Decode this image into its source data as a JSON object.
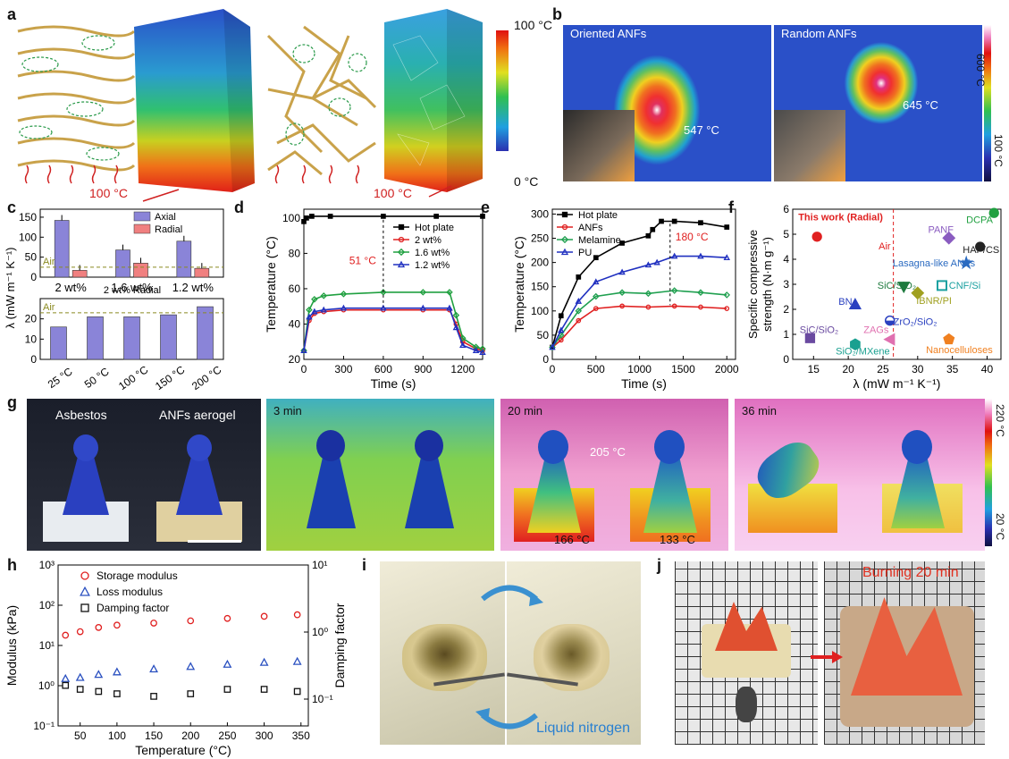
{
  "panels": {
    "a": {
      "label": "a",
      "heat_label_left": "100 °C",
      "heat_label_right": "100 °C",
      "colorbar_top": "100 °C",
      "colorbar_bottom": "0 °C",
      "colors": {
        "hot": "#e0201a",
        "cold": "#2a50c8",
        "fiber": "#c9a24a"
      }
    },
    "b": {
      "label": "b",
      "left_title": "Oriented ANFs",
      "right_title": "Random ANFs",
      "left_temp": "547 °C",
      "right_temp": "645 °C",
      "colorbar_top": "600 °C",
      "colorbar_bottom": "100 °C"
    },
    "g": {
      "label": "g",
      "photo_left_label": "Asbestos",
      "photo_right_label": "ANFs aerogel",
      "t1": "3 min",
      "t2": "20 min",
      "t3": "36 min",
      "bg_temp": "205 °C",
      "left_temp": "166 °C",
      "right_temp": "133 °C",
      "colorbar_top": "220 °C",
      "colorbar_bottom": "20 °C"
    },
    "i": {
      "label": "i",
      "caption": "Liquid nitrogen"
    },
    "j": {
      "label": "j",
      "caption": "Burning 20 min"
    }
  },
  "chart_data": [
    {
      "id": "c-top",
      "panel": "c",
      "type": "bar",
      "categories": [
        "2 wt%",
        "1.6 wt%",
        "1.2 wt%"
      ],
      "series": [
        {
          "name": "Axial",
          "values": [
            142,
            68,
            90
          ],
          "color": "#8a84d8"
        },
        {
          "name": "Radial",
          "values": [
            17,
            35,
            22
          ],
          "color": "#f08080"
        }
      ],
      "air_line": 25,
      "air_label": "Air",
      "ylim": [
        0,
        170
      ],
      "yticks": [
        0,
        50,
        100,
        150
      ]
    },
    {
      "id": "c-bottom",
      "panel": "c",
      "type": "bar",
      "title": "2 wt% Radial",
      "categories": [
        "25 °C",
        "50 °C",
        "100 °C",
        "150 °C",
        "200 °C"
      ],
      "values": [
        16,
        21,
        21,
        22,
        26
      ],
      "air_line": 23,
      "air_label": "Air",
      "ylim": [
        0,
        30
      ],
      "yticks": [
        0,
        10,
        20
      ],
      "ylabel": "λ (mW m⁻¹ K⁻¹)"
    },
    {
      "id": "d",
      "panel": "d",
      "type": "line",
      "xlabel": "Time (s)",
      "ylabel": "Temperature (°C)",
      "xlim": [
        0,
        1350
      ],
      "ylim": [
        20,
        105
      ],
      "xticks": [
        0,
        300,
        600,
        900,
        1200
      ],
      "yticks": [
        20,
        40,
        60,
        80,
        100
      ],
      "annotation": "51 °C",
      "series": [
        {
          "name": "Hot plate",
          "color": "#000000",
          "marker": "square",
          "x": [
            0,
            20,
            60,
            200,
            600,
            1000,
            1350
          ],
          "y": [
            98,
            100,
            101,
            101,
            101,
            101,
            101
          ]
        },
        {
          "name": "2 wt%",
          "color": "#e02020",
          "marker": "circle",
          "x": [
            0,
            40,
            80,
            150,
            300,
            600,
            900,
            1100,
            1150,
            1200,
            1300,
            1350
          ],
          "y": [
            25,
            42,
            46,
            47,
            48,
            48,
            48,
            48,
            40,
            30,
            26,
            25
          ]
        },
        {
          "name": "1.6 wt%",
          "color": "#20a040",
          "marker": "diamond",
          "x": [
            0,
            40,
            80,
            150,
            300,
            600,
            900,
            1100,
            1150,
            1200,
            1300,
            1350
          ],
          "y": [
            25,
            48,
            54,
            56,
            57,
            58,
            58,
            58,
            45,
            32,
            27,
            26
          ]
        },
        {
          "name": "1.2 wt%",
          "color": "#2030c0",
          "marker": "triangle",
          "x": [
            0,
            40,
            80,
            150,
            300,
            600,
            900,
            1100,
            1150,
            1200,
            1300,
            1350
          ],
          "y": [
            25,
            44,
            47,
            48,
            49,
            49,
            49,
            49,
            38,
            28,
            25,
            24
          ]
        }
      ]
    },
    {
      "id": "e",
      "panel": "e",
      "type": "line",
      "xlabel": "Time (s)",
      "ylabel": "Temperature (°C)",
      "xlim": [
        0,
        2100
      ],
      "ylim": [
        0,
        310
      ],
      "xticks": [
        0,
        500,
        1000,
        1500,
        2000
      ],
      "yticks": [
        0,
        50,
        100,
        150,
        200,
        250,
        300
      ],
      "annotation": "180 °C",
      "series": [
        {
          "name": "Hot plate",
          "color": "#000000",
          "marker": "square",
          "x": [
            0,
            100,
            300,
            500,
            800,
            1100,
            1150,
            1250,
            1400,
            1700,
            2000
          ],
          "y": [
            25,
            90,
            170,
            210,
            240,
            255,
            268,
            285,
            285,
            282,
            273
          ]
        },
        {
          "name": "ANFs",
          "color": "#e02020",
          "marker": "circle",
          "x": [
            0,
            100,
            300,
            500,
            800,
            1100,
            1400,
            1700,
            2000
          ],
          "y": [
            25,
            40,
            80,
            105,
            110,
            108,
            110,
            108,
            105
          ]
        },
        {
          "name": "Melamine",
          "color": "#20a050",
          "marker": "diamond",
          "x": [
            0,
            100,
            300,
            500,
            800,
            1100,
            1400,
            1700,
            2000
          ],
          "y": [
            25,
            50,
            100,
            130,
            138,
            136,
            142,
            138,
            133
          ]
        },
        {
          "name": "PU",
          "color": "#2030c0",
          "marker": "triangle",
          "x": [
            0,
            100,
            300,
            500,
            800,
            1100,
            1200,
            1400,
            1700,
            2000
          ],
          "y": [
            25,
            60,
            120,
            160,
            180,
            195,
            200,
            213,
            213,
            210
          ]
        }
      ]
    },
    {
      "id": "f",
      "panel": "f",
      "type": "scatter",
      "xlabel": "λ (mW m⁻¹ K⁻¹)",
      "ylabel": "Specific compressive strength (N·m g⁻¹)",
      "xlim": [
        12,
        42
      ],
      "ylim": [
        0,
        6
      ],
      "xticks": [
        15,
        20,
        25,
        30,
        35,
        40
      ],
      "yticks": [
        0,
        1,
        2,
        3,
        4,
        5,
        6
      ],
      "air_x": 26.5,
      "air_label": "Air",
      "points": [
        {
          "name": "This work (Radial)",
          "x": 15.5,
          "y": 4.9,
          "color": "#e02020",
          "shape": "circle",
          "lx": 12.8,
          "ly": 5.55,
          "bold": true
        },
        {
          "name": "DCPA",
          "x": 41,
          "y": 5.85,
          "color": "#20a040",
          "shape": "circle",
          "lx": 37,
          "ly": 5.45
        },
        {
          "name": "PANF",
          "x": 34.5,
          "y": 4.85,
          "color": "#8a5cc0",
          "shape": "diamond",
          "lx": 31.5,
          "ly": 5.05
        },
        {
          "name": "HAP/CS",
          "x": 39,
          "y": 4.5,
          "color": "#222222",
          "shape": "circle",
          "lx": 36.5,
          "ly": 4.25
        },
        {
          "name": "Lasagna-like ANFs",
          "x": 37,
          "y": 3.85,
          "color": "#2a6ac0",
          "shape": "star",
          "lx": 26.4,
          "ly": 3.72
        },
        {
          "name": "SiC/SiO₂",
          "x": 28,
          "y": 2.9,
          "color": "#1e7a3e",
          "shape": "triangle-down",
          "lx": 24.2,
          "ly": 2.82
        },
        {
          "name": "CNF/Si",
          "x": 33.5,
          "y": 2.95,
          "color": "#1aa0a0",
          "shape": "square-outline",
          "lx": 34.5,
          "ly": 2.82
        },
        {
          "name": "IBNR/PI",
          "x": 30,
          "y": 2.65,
          "color": "#a0a020",
          "shape": "diamond",
          "lx": 29.8,
          "ly": 2.22
        },
        {
          "name": "BN",
          "x": 21,
          "y": 2.2,
          "color": "#2a40c0",
          "shape": "triangle",
          "lx": 18.6,
          "ly": 2.18
        },
        {
          "name": "ZrO₂/SiO₂",
          "x": 26,
          "y": 1.55,
          "color": "#2a40c0",
          "shape": "half-circle",
          "lx": 26.5,
          "ly": 1.38
        },
        {
          "name": "SiC/SiO₂",
          "x": 14.5,
          "y": 0.85,
          "color": "#6a4aa0",
          "shape": "square",
          "lx": 13,
          "ly": 1.05
        },
        {
          "name": "ZAGs",
          "x": 26,
          "y": 0.8,
          "color": "#e070b0",
          "shape": "triangle-left",
          "lx": 22.2,
          "ly": 1.05
        },
        {
          "name": "SiO₂/MXene",
          "x": 21,
          "y": 0.6,
          "color": "#1aa090",
          "shape": "hexagon",
          "lx": 18.2,
          "ly": 0.2
        },
        {
          "name": "Nanocelluloses",
          "x": 34.5,
          "y": 0.8,
          "color": "#f08020",
          "shape": "pentagon",
          "lx": 31.2,
          "ly": 0.25
        }
      ]
    },
    {
      "id": "h",
      "panel": "h",
      "type": "scatter",
      "xlabel": "Temperature (°C)",
      "ylabel": "Modulus (kPa)",
      "ylabel_right": "Damping factor",
      "xlim": [
        20,
        360
      ],
      "xticks": [
        50,
        100,
        150,
        200,
        250,
        300,
        350
      ],
      "y_log_range": [
        -1,
        3
      ],
      "y_ticks_left": [
        "10⁻¹",
        "10⁰",
        "10¹",
        "10²",
        "10³"
      ],
      "y_right_log_range": [
        -1.4,
        1
      ],
      "y_ticks_right": [
        "10⁻¹",
        "10⁰",
        "10¹"
      ],
      "series": [
        {
          "name": "Storage modulus",
          "color": "#e02020",
          "marker": "circle",
          "axis": "left",
          "x": [
            30,
            50,
            75,
            100,
            150,
            200,
            250,
            300,
            345
          ],
          "y": [
            18,
            22,
            28,
            32,
            36,
            41,
            47,
            53,
            58
          ]
        },
        {
          "name": "Loss modulus",
          "color": "#2a50c0",
          "marker": "triangle",
          "axis": "left",
          "x": [
            30,
            50,
            75,
            100,
            150,
            200,
            250,
            300,
            345
          ],
          "y": [
            1.5,
            1.6,
            1.9,
            2.2,
            2.6,
            3.0,
            3.4,
            3.8,
            4.0
          ]
        },
        {
          "name": "Damping factor",
          "color": "#111111",
          "marker": "square",
          "axis": "right",
          "x": [
            30,
            50,
            75,
            100,
            150,
            200,
            250,
            300,
            345
          ],
          "y": [
            0.16,
            0.14,
            0.13,
            0.12,
            0.11,
            0.12,
            0.14,
            0.14,
            0.13
          ]
        }
      ]
    }
  ]
}
